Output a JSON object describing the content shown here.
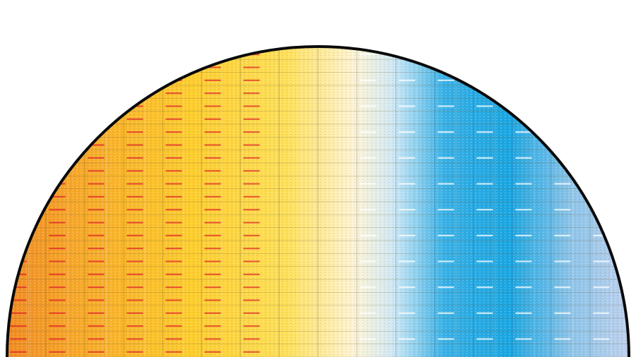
{
  "image": {
    "subject": "wafer",
    "colors": {
      "background": "#ffffff",
      "rim": "#0a0a0a",
      "gradient": [
        "#f08a24",
        "#f7a82a",
        "#fdcd2e",
        "#fde05a",
        "#fdf4d8",
        "#cde8f6",
        "#36b0e6",
        "#1aa6e2",
        "#8ec5ea",
        "#c4d2ee"
      ],
      "die_line": "#6b5a2a",
      "die_line_blue": "#2a5f86",
      "accent_red": "#e0322a",
      "accent_white": "#ffffff"
    },
    "grid": {
      "columns": 16,
      "rows": 24
    }
  }
}
